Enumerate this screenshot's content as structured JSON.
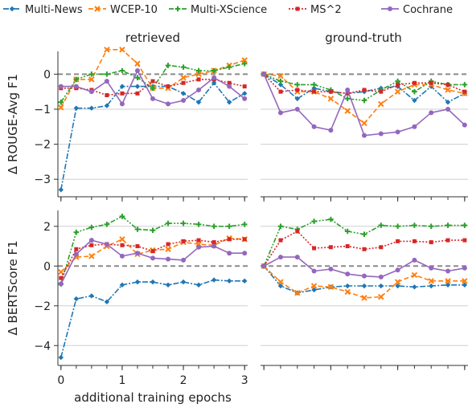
{
  "legend": [
    {
      "name": "Multi-News",
      "color": "#1f77b4",
      "dash": "7 2 2 2",
      "marker": "diamond"
    },
    {
      "name": "WCEP-10",
      "color": "#ff7f0e",
      "dash": "6 3",
      "marker": "x"
    },
    {
      "name": "Multi-XScience",
      "color": "#2ca02c",
      "dash": "6 2 2 2 2 2",
      "marker": "plus"
    },
    {
      "name": "MS^2",
      "color": "#d62728",
      "dash": "2 2",
      "marker": "square"
    },
    {
      "name": "Cochrane",
      "color": "#9467bd",
      "dash": "",
      "marker": "circle"
    }
  ],
  "column_titles": [
    "retrieved",
    "ground-truth"
  ],
  "xlabel": "additional training epochs",
  "chart_data": [
    {
      "type": "line",
      "column": "retrieved",
      "ylabel": "Δ ROUGE-Avg F1",
      "xlim": [
        -0.05,
        3.05
      ],
      "ylim": [
        -3.5,
        0.65
      ],
      "xticks": [
        0,
        1,
        2,
        3
      ],
      "yticks": [
        0,
        -1,
        -2,
        -3
      ],
      "baseline": 0,
      "x": [
        0,
        0.25,
        0.5,
        0.75,
        1.0,
        1.25,
        1.5,
        1.75,
        2.0,
        2.25,
        2.5,
        2.75,
        3.0
      ],
      "series": [
        {
          "name": "Multi-News",
          "values": [
            -3.3,
            -0.97,
            -0.97,
            -0.9,
            -0.35,
            -0.35,
            -0.35,
            -0.35,
            -0.55,
            -0.8,
            -0.25,
            -0.8,
            -0.55
          ]
        },
        {
          "name": "WCEP-10",
          "values": [
            -0.95,
            -0.15,
            -0.15,
            0.7,
            0.7,
            0.3,
            -0.4,
            -0.4,
            -0.1,
            0.0,
            0.1,
            0.25,
            0.4
          ]
        },
        {
          "name": "Multi-XScience",
          "values": [
            -0.8,
            -0.15,
            0.0,
            0.0,
            0.1,
            -0.1,
            -0.4,
            0.25,
            0.2,
            0.1,
            0.1,
            0.2,
            0.3
          ]
        },
        {
          "name": "MS^2",
          "values": [
            -0.4,
            -0.4,
            -0.45,
            -0.6,
            -0.55,
            -0.55,
            -0.2,
            -0.35,
            -0.25,
            -0.15,
            -0.15,
            -0.25,
            -0.35
          ]
        },
        {
          "name": "Cochrane",
          "values": [
            -0.35,
            -0.35,
            -0.5,
            -0.2,
            -0.85,
            0.1,
            -0.7,
            -0.85,
            -0.75,
            -0.45,
            -0.1,
            -0.35,
            -0.7
          ]
        }
      ]
    },
    {
      "type": "line",
      "column": "ground-truth",
      "ylabel": "",
      "xlim": [
        -0.05,
        3.05
      ],
      "ylim": [
        -3.5,
        0.65
      ],
      "xticks": [
        0,
        1,
        2,
        3
      ],
      "yticks": [
        0,
        -1,
        -2,
        -3
      ],
      "baseline": 0,
      "x": [
        0,
        0.25,
        0.5,
        0.75,
        1.0,
        1.25,
        1.5,
        1.75,
        2.0,
        2.25,
        2.5,
        2.75,
        3.0
      ],
      "series": [
        {
          "name": "Multi-News",
          "values": [
            0.0,
            -0.3,
            -0.7,
            -0.4,
            -0.5,
            -0.55,
            -0.5,
            -0.4,
            -0.35,
            -0.75,
            -0.35,
            -0.8,
            -0.55
          ]
        },
        {
          "name": "WCEP-10",
          "values": [
            0.0,
            -0.05,
            -0.5,
            -0.5,
            -0.7,
            -1.05,
            -1.4,
            -0.85,
            -0.5,
            -0.3,
            -0.3,
            -0.45,
            -0.55
          ]
        },
        {
          "name": "Multi-XScience",
          "values": [
            0.0,
            -0.2,
            -0.3,
            -0.3,
            -0.45,
            -0.7,
            -0.75,
            -0.45,
            -0.2,
            -0.5,
            -0.2,
            -0.3,
            -0.3
          ]
        },
        {
          "name": "MS^2",
          "values": [
            0.0,
            -0.5,
            -0.45,
            -0.5,
            -0.5,
            -0.55,
            -0.45,
            -0.5,
            -0.3,
            -0.25,
            -0.25,
            -0.3,
            -0.5
          ]
        },
        {
          "name": "Cochrane",
          "values": [
            0.0,
            -1.1,
            -1.0,
            -1.5,
            -1.6,
            -0.45,
            -1.75,
            -1.7,
            -1.65,
            -1.5,
            -1.1,
            -1.0,
            -1.45
          ]
        }
      ]
    },
    {
      "type": "line",
      "column": "retrieved",
      "ylabel": "Δ BERTScore F1",
      "xlim": [
        -0.05,
        3.05
      ],
      "ylim": [
        -5.0,
        2.8
      ],
      "xticks": [
        0,
        1,
        2,
        3
      ],
      "yticks": [
        2,
        0,
        -2,
        -4
      ],
      "baseline": 0,
      "x": [
        0,
        0.25,
        0.5,
        0.75,
        1.0,
        1.25,
        1.5,
        1.75,
        2.0,
        2.25,
        2.5,
        2.75,
        3.0
      ],
      "series": [
        {
          "name": "Multi-News",
          "values": [
            -4.6,
            -1.65,
            -1.5,
            -1.8,
            -0.95,
            -0.8,
            -0.8,
            -0.95,
            -0.8,
            -0.95,
            -0.7,
            -0.75,
            -0.75
          ]
        },
        {
          "name": "WCEP-10",
          "values": [
            -0.3,
            0.45,
            0.5,
            1.0,
            1.35,
            0.6,
            0.8,
            0.85,
            1.2,
            1.1,
            1.05,
            1.4,
            1.35
          ]
        },
        {
          "name": "Multi-XScience",
          "values": [
            -0.9,
            1.7,
            1.95,
            2.1,
            2.5,
            1.85,
            1.8,
            2.15,
            2.15,
            2.1,
            2.0,
            2.0,
            2.1
          ]
        },
        {
          "name": "MS^2",
          "values": [
            -0.6,
            0.85,
            1.05,
            1.1,
            1.05,
            1.0,
            0.75,
            1.1,
            1.25,
            1.3,
            1.2,
            1.35,
            1.35
          ]
        },
        {
          "name": "Cochrane",
          "values": [
            -0.9,
            0.6,
            1.3,
            1.1,
            0.5,
            0.65,
            0.4,
            0.35,
            0.3,
            0.95,
            1.0,
            0.65,
            0.65
          ]
        }
      ]
    },
    {
      "type": "line",
      "column": "ground-truth",
      "ylabel": "",
      "xlim": [
        -0.05,
        3.05
      ],
      "ylim": [
        -5.0,
        2.8
      ],
      "xticks": [
        0,
        1,
        2,
        3
      ],
      "yticks": [
        2,
        0,
        -2,
        -4
      ],
      "baseline": 0,
      "x": [
        0,
        0.25,
        0.5,
        0.75,
        1.0,
        1.25,
        1.5,
        1.75,
        2.0,
        2.25,
        2.5,
        2.75,
        3.0
      ],
      "series": [
        {
          "name": "Multi-News",
          "values": [
            0.0,
            -1.0,
            -1.35,
            -1.2,
            -1.05,
            -1.0,
            -1.0,
            -1.0,
            -1.0,
            -1.05,
            -1.0,
            -0.95,
            -0.95
          ]
        },
        {
          "name": "WCEP-10",
          "values": [
            0.0,
            -0.8,
            -1.35,
            -1.0,
            -1.05,
            -1.3,
            -1.6,
            -1.55,
            -0.8,
            -0.45,
            -0.75,
            -0.75,
            -0.75
          ]
        },
        {
          "name": "Multi-XScience",
          "values": [
            0.0,
            2.0,
            1.85,
            2.25,
            2.35,
            1.75,
            1.6,
            2.05,
            2.0,
            2.05,
            2.0,
            2.05,
            2.05
          ]
        },
        {
          "name": "MS^2",
          "values": [
            0.0,
            1.3,
            1.75,
            0.9,
            0.95,
            1.0,
            0.85,
            0.95,
            1.25,
            1.25,
            1.2,
            1.3,
            1.3
          ]
        },
        {
          "name": "Cochrane",
          "values": [
            0.0,
            0.45,
            0.45,
            -0.25,
            -0.15,
            -0.4,
            -0.5,
            -0.55,
            -0.2,
            0.3,
            -0.1,
            -0.25,
            -0.1
          ]
        }
      ]
    }
  ]
}
